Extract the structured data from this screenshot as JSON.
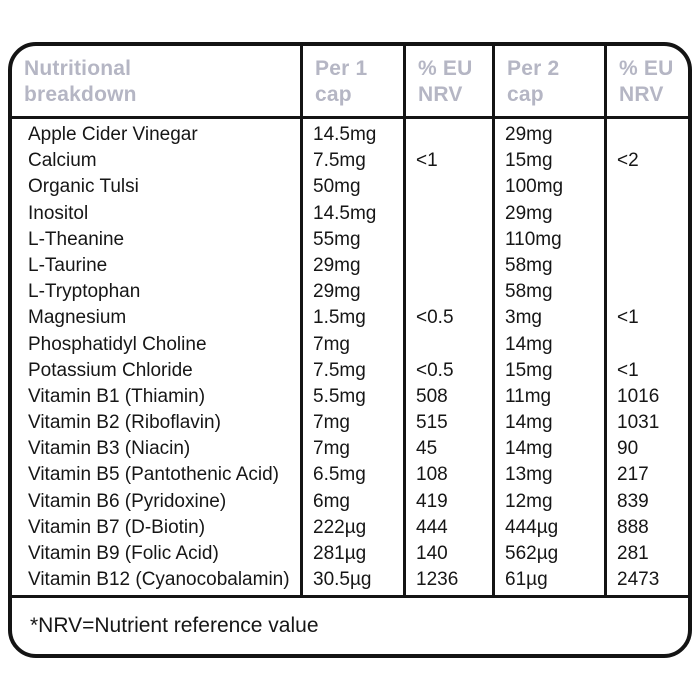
{
  "colors": {
    "header_text": "#b5b6c4",
    "border": "#141414",
    "body_text": "#161616",
    "background": "#ffffff"
  },
  "table": {
    "headers": [
      "Nutritional\nbreakdown",
      "Per 1\ncap",
      "% EU\nNRV",
      "Per 2\ncap",
      "% EU\nNRV"
    ],
    "rows": [
      {
        "name": "Apple Cider Vinegar",
        "per1": "14.5mg",
        "nrv1": "",
        "per2": "29mg",
        "nrv2": ""
      },
      {
        "name": "Calcium",
        "per1": "7.5mg",
        "nrv1": "<1",
        "per2": "15mg",
        "nrv2": "<2"
      },
      {
        "name": "Organic Tulsi",
        "per1": "50mg",
        "nrv1": "",
        "per2": "100mg",
        "nrv2": ""
      },
      {
        "name": "Inositol",
        "per1": "14.5mg",
        "nrv1": "",
        "per2": "29mg",
        "nrv2": ""
      },
      {
        "name": "L-Theanine",
        "per1": "55mg",
        "nrv1": "",
        "per2": "110mg",
        "nrv2": ""
      },
      {
        "name": "L-Taurine",
        "per1": "29mg",
        "nrv1": "",
        "per2": "58mg",
        "nrv2": ""
      },
      {
        "name": "L-Tryptophan",
        "per1": "29mg",
        "nrv1": "",
        "per2": "58mg",
        "nrv2": ""
      },
      {
        "name": "Magnesium",
        "per1": "1.5mg",
        "nrv1": "<0.5",
        "per2": "3mg",
        "nrv2": "<1"
      },
      {
        "name": "Phosphatidyl Choline",
        "per1": "7mg",
        "nrv1": "",
        "per2": "14mg",
        "nrv2": ""
      },
      {
        "name": "Potassium Chloride",
        "per1": "7.5mg",
        "nrv1": "<0.5",
        "per2": "15mg",
        "nrv2": "<1"
      },
      {
        "name": "Vitamin B1 (Thiamin)",
        "per1": "5.5mg",
        "nrv1": "508",
        "per2": "11mg",
        "nrv2": "1016"
      },
      {
        "name": "Vitamin B2 (Riboflavin)",
        "per1": "7mg",
        "nrv1": "515",
        "per2": "14mg",
        "nrv2": "1031"
      },
      {
        "name": "Vitamin B3 (Niacin)",
        "per1": "7mg",
        "nrv1": "45",
        "per2": "14mg",
        "nrv2": "90"
      },
      {
        "name": "Vitamin B5 (Pantothenic Acid)",
        "per1": "6.5mg",
        "nrv1": "108",
        "per2": "13mg",
        "nrv2": "217"
      },
      {
        "name": "Vitamin B6 (Pyridoxine)",
        "per1": "6mg",
        "nrv1": "419",
        "per2": "12mg",
        "nrv2": "839"
      },
      {
        "name": "Vitamin B7 (D-Biotin)",
        "per1": "222µg",
        "nrv1": "444",
        "per2": "444µg",
        "nrv2": "888"
      },
      {
        "name": "Vitamin B9 (Folic Acid)",
        "per1": "281µg",
        "nrv1": "140",
        "per2": "562µg",
        "nrv2": "281"
      },
      {
        "name": "Vitamin B12 (Cyanocobalamin)",
        "per1": "30.5µg",
        "nrv1": "1236",
        "per2": "61µg",
        "nrv2": "2473"
      }
    ],
    "footnote": "*NRV=Nutrient reference value"
  }
}
